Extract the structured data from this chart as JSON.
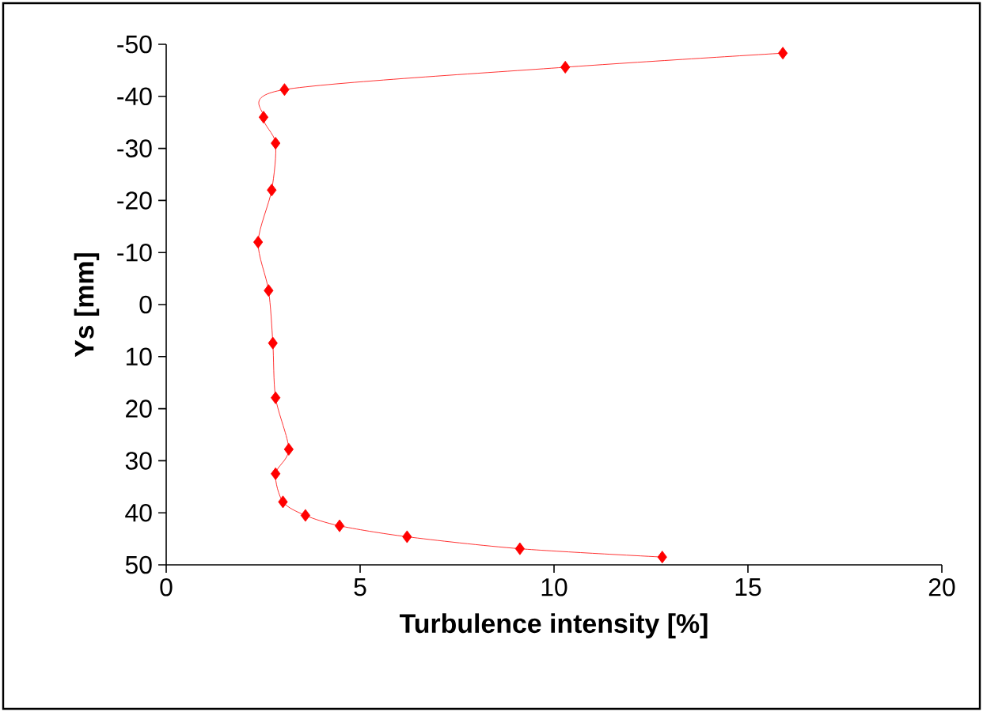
{
  "chart_data": {
    "type": "line",
    "xlabel": "Turbulence intensity [%]",
    "ylabel": "Ys [mm]",
    "series": [
      {
        "color": "#ff0000",
        "x": [
          15.9,
          10.29,
          3.05,
          2.51,
          2.82,
          2.72,
          2.37,
          2.64,
          2.75,
          2.82,
          3.16,
          2.82,
          3.01,
          3.59,
          4.47,
          6.21,
          9.12,
          12.79
        ],
        "values": [
          -48.3,
          -45.6,
          -41.3,
          -36.0,
          -31.0,
          -22.0,
          -12.0,
          -2.7,
          7.4,
          17.9,
          27.8,
          32.5,
          37.9,
          40.5,
          42.5,
          44.6,
          46.9,
          48.5
        ]
      }
    ],
    "xlim": [
      0,
      20
    ],
    "xticks": [
      0,
      5,
      10,
      15,
      20
    ],
    "ylim": [
      50,
      -50
    ],
    "yticks": [
      -50,
      -40,
      -30,
      -20,
      -10,
      0,
      10,
      20,
      30,
      40,
      50
    ],
    "grid": false,
    "marker": "diamond",
    "line_style": "solid"
  }
}
